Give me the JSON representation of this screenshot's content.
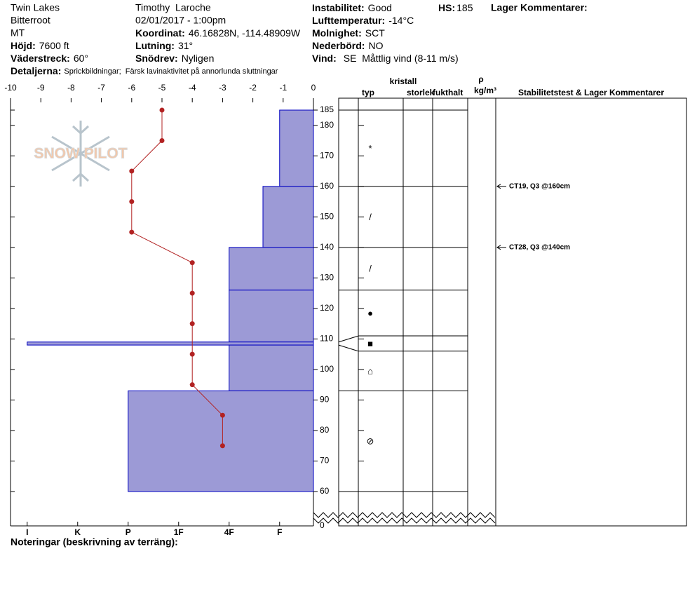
{
  "header": {
    "site": "Twin Lakes",
    "range": "Bitterroot",
    "state": "MT",
    "elevation": {
      "label": "Höjd:",
      "value": "7600 ft"
    },
    "aspect": {
      "label": "Väderstreck:",
      "value": "60°"
    },
    "details": {
      "label": "Detaljerna:",
      "value": "Sprickbildningar;  Färsk lavinaktivitet på annorlunda sluttningar"
    },
    "observer": "Timothy  Laroche",
    "datetime": "02/01/2017 - 1:00pm",
    "coordinates": {
      "label": "Koordinat:",
      "value": "46.16828N, -114.48909W"
    },
    "slope": {
      "label": "Lutning:",
      "value": "31°"
    },
    "wind_loading": {
      "label": "Snödrev:",
      "value": "Nyligen"
    },
    "stability": {
      "label": "Instabilitet:",
      "value": "Good"
    },
    "air_temp": {
      "label": "Lufttemperatur:",
      "value": "-14°C"
    },
    "sky": {
      "label": "Molnighet:",
      "value": "SCT"
    },
    "precip": {
      "label": "Nederbörd:",
      "value": "NO"
    },
    "wind": {
      "label": "Vind:",
      "value": "SE  Måttlig vind (8-11 m/s)"
    },
    "hs": {
      "label": "HS:",
      "value": "185"
    },
    "layer_comments": "Lager Kommentarer:"
  },
  "logo": "SNOW PILOT",
  "table_header": {
    "crystal": "kristall",
    "type": "typ",
    "size": "storlek",
    "moisture": "fukthalt",
    "rho": "ρ",
    "density_unit": "kg/m³",
    "tests": "Stabilitetstest & Lager Kommentarer"
  },
  "notes_label": "Noteringar (beskrivning av terräng):",
  "chart_data": {
    "type": "snow-profile",
    "ylim": [
      60,
      185
    ],
    "yticks": [
      60,
      70,
      80,
      90,
      100,
      110,
      120,
      130,
      140,
      150,
      160,
      170,
      180,
      185
    ],
    "ybreak_tick": 0,
    "temperature": {
      "xlim": [
        -10,
        0
      ],
      "xticks": [
        -10,
        -9,
        -8,
        -7,
        -6,
        -5,
        -4,
        -3,
        -2,
        -1,
        0
      ],
      "heights": [
        185,
        175,
        165,
        155,
        145,
        135,
        125,
        115,
        105,
        95,
        85,
        75
      ],
      "values": [
        -5,
        -5,
        -6,
        -6,
        -6,
        -4,
        -4,
        -4,
        -4,
        -4,
        -3,
        -3
      ],
      "color": "#b22222"
    },
    "hardness_lim": [
      6.33,
      0.33
    ],
    "hardness_ticks": [
      {
        "value": 6,
        "label": "I"
      },
      {
        "value": 5,
        "label": "K"
      },
      {
        "value": 4,
        "label": "P"
      },
      {
        "value": 3,
        "label": "1F"
      },
      {
        "value": 2,
        "label": "4F"
      },
      {
        "value": 1,
        "label": "F"
      }
    ],
    "layer_color": "#9c9ad6",
    "layers": [
      {
        "top": 185,
        "bottom": 160,
        "hardness": 1,
        "grain": "*"
      },
      {
        "top": 160,
        "bottom": 140,
        "hardness": 1.33,
        "grain": "/"
      },
      {
        "top": 140,
        "bottom": 126,
        "hardness": 2,
        "grain": "/"
      },
      {
        "top": 126,
        "bottom": 109,
        "hardness": 2,
        "grain": "●"
      },
      {
        "top": 109,
        "bottom": 108,
        "hardness": 6,
        "grain": "■"
      },
      {
        "top": 108,
        "bottom": 93,
        "hardness": 2,
        "grain": "⌂"
      },
      {
        "top": 93,
        "bottom": 60,
        "hardness": 4,
        "grain": "⊘"
      }
    ],
    "tests": [
      {
        "height": 160,
        "label": "CT19, Q3 @160cm"
      },
      {
        "height": 140,
        "label": "CT28, Q3 @140cm"
      }
    ]
  }
}
